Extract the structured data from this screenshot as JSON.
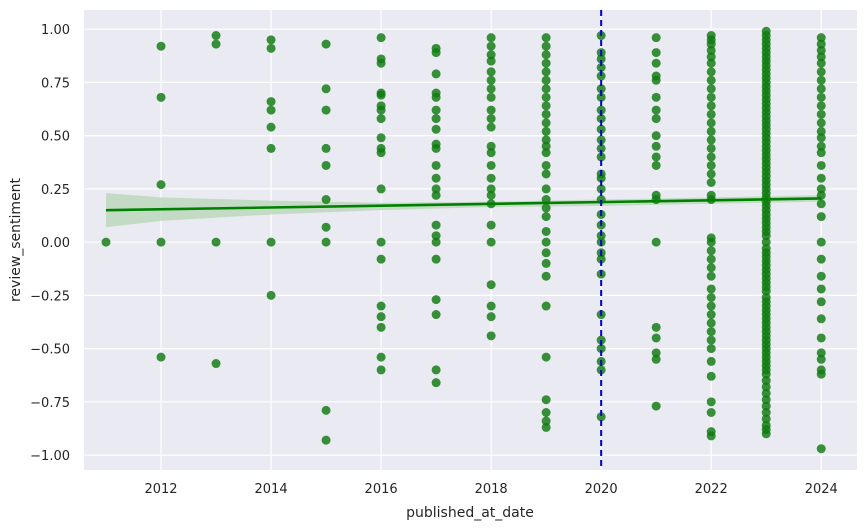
{
  "chart_data": {
    "type": "scatter",
    "title": "",
    "xlabel": "published_at_date",
    "ylabel": "review_sentiment",
    "xlim": [
      2010.6,
      2024.65
    ],
    "ylim": [
      -1.07,
      1.09
    ],
    "x_ticks": [
      2012,
      2014,
      2016,
      2018,
      2020,
      2022,
      2024
    ],
    "y_ticks": [
      -1.0,
      -0.75,
      -0.5,
      -0.25,
      0.0,
      0.25,
      0.5,
      0.75,
      1.0
    ],
    "x_tick_labels": [
      "2012",
      "2014",
      "2016",
      "2018",
      "2020",
      "2022",
      "2024"
    ],
    "y_tick_labels": [
      "−1.00",
      "−0.75",
      "−0.50",
      "−0.25",
      "0.00",
      "0.25",
      "0.50",
      "0.75",
      "1.00"
    ],
    "grid": true,
    "background": "#eaeaf2",
    "point_color": "#0f7a0f",
    "regression_color": "#008000",
    "ci_color": "#b9d6b9",
    "vline_color": "#0000cc",
    "points": [
      {
        "x": 2011,
        "y": [
          0.0
        ]
      },
      {
        "x": 2012,
        "y": [
          0.92,
          0.68,
          0.27,
          0.0,
          -0.54
        ]
      },
      {
        "x": 2013,
        "y": [
          0.97,
          0.93,
          0.0,
          -0.57
        ]
      },
      {
        "x": 2014,
        "y": [
          0.95,
          0.91,
          0.66,
          0.62,
          0.54,
          0.44,
          0.0,
          -0.25
        ]
      },
      {
        "x": 2015,
        "y": [
          0.93,
          0.72,
          0.62,
          0.44,
          0.36,
          0.2,
          0.07,
          0.0,
          -0.79,
          -0.93
        ]
      },
      {
        "x": 2016,
        "y": [
          0.96,
          0.86,
          0.84,
          0.7,
          0.69,
          0.64,
          0.62,
          0.58,
          0.49,
          0.44,
          0.42,
          0.25,
          0.0,
          -0.08,
          -0.3,
          -0.35,
          -0.4,
          -0.54,
          -0.6
        ]
      },
      {
        "x": 2017,
        "y": [
          0.91,
          0.89,
          0.79,
          0.7,
          0.68,
          0.62,
          0.58,
          0.53,
          0.46,
          0.44,
          0.36,
          0.3,
          0.25,
          0.22,
          0.08,
          0.03,
          0.0,
          -0.08,
          -0.27,
          -0.34,
          -0.6,
          -0.66
        ]
      },
      {
        "x": 2018,
        "y": [
          0.96,
          0.92,
          0.88,
          0.85,
          0.8,
          0.76,
          0.72,
          0.68,
          0.62,
          0.58,
          0.54,
          0.45,
          0.42,
          0.36,
          0.3,
          0.25,
          0.22,
          0.18,
          0.08,
          0.0,
          -0.2,
          -0.3,
          -0.35,
          -0.44
        ]
      },
      {
        "x": 2019,
        "y": [
          0.96,
          0.92,
          0.88,
          0.84,
          0.8,
          0.76,
          0.72,
          0.68,
          0.64,
          0.6,
          0.56,
          0.52,
          0.48,
          0.45,
          0.42,
          0.36,
          0.32,
          0.25,
          0.2,
          0.16,
          0.12,
          0.05,
          0.0,
          -0.05,
          -0.1,
          -0.16,
          -0.3,
          -0.54,
          -0.74,
          -0.8,
          -0.84,
          -0.87
        ]
      },
      {
        "x": 2020,
        "y": [
          0.97,
          0.89,
          0.86,
          0.82,
          0.78,
          0.72,
          0.68,
          0.62,
          0.58,
          0.53,
          0.48,
          0.44,
          0.4,
          0.32,
          0.3,
          0.25,
          0.2,
          0.13,
          0.08,
          0.03,
          0.0,
          -0.05,
          -0.08,
          -0.15,
          -0.34,
          -0.46,
          -0.5,
          -0.56,
          -0.6,
          -0.82
        ]
      },
      {
        "x": 2021,
        "y": [
          0.96,
          0.89,
          0.84,
          0.78,
          0.76,
          0.68,
          0.62,
          0.58,
          0.5,
          0.45,
          0.4,
          0.36,
          0.22,
          0.2,
          0.0,
          -0.4,
          -0.45,
          -0.52,
          -0.55,
          -0.77
        ]
      },
      {
        "x": 2022,
        "y": [
          0.97,
          0.95,
          0.93,
          0.9,
          0.87,
          0.84,
          0.8,
          0.76,
          0.72,
          0.68,
          0.64,
          0.6,
          0.56,
          0.52,
          0.48,
          0.44,
          0.4,
          0.36,
          0.32,
          0.28,
          0.22,
          0.2,
          0.02,
          0.0,
          -0.04,
          -0.08,
          -0.12,
          -0.16,
          -0.22,
          -0.26,
          -0.3,
          -0.34,
          -0.38,
          -0.42,
          -0.46,
          -0.5,
          -0.56,
          -0.63,
          -0.75,
          -0.8,
          -0.89,
          -0.91
        ]
      },
      {
        "x": 2023,
        "y": [
          0.99,
          0.97,
          0.95,
          0.93,
          0.91,
          0.89,
          0.87,
          0.85,
          0.83,
          0.81,
          0.79,
          0.77,
          0.75,
          0.73,
          0.71,
          0.69,
          0.67,
          0.65,
          0.63,
          0.61,
          0.59,
          0.57,
          0.55,
          0.53,
          0.51,
          0.49,
          0.47,
          0.45,
          0.43,
          0.41,
          0.39,
          0.37,
          0.35,
          0.33,
          0.31,
          0.29,
          0.27,
          0.25,
          0.23,
          0.21,
          0.19,
          0.17,
          0.15,
          0.13,
          0.11,
          0.09,
          0.07,
          0.05,
          0.03,
          0.0,
          -0.03,
          -0.05,
          -0.07,
          -0.09,
          -0.11,
          -0.13,
          -0.15,
          -0.17,
          -0.19,
          -0.21,
          -0.23,
          -0.26,
          -0.28,
          -0.3,
          -0.32,
          -0.34,
          -0.36,
          -0.38,
          -0.4,
          -0.42,
          -0.44,
          -0.46,
          -0.48,
          -0.5,
          -0.52,
          -0.54,
          -0.56,
          -0.58,
          -0.6,
          -0.62,
          -0.65,
          -0.68,
          -0.71,
          -0.74,
          -0.77,
          -0.8,
          -0.83,
          -0.86,
          -0.88,
          -0.9
        ]
      },
      {
        "x": 2024,
        "y": [
          0.96,
          0.93,
          0.9,
          0.87,
          0.84,
          0.8,
          0.76,
          0.72,
          0.68,
          0.64,
          0.6,
          0.56,
          0.52,
          0.49,
          0.45,
          0.42,
          0.36,
          0.3,
          0.25,
          0.22,
          0.18,
          0.12,
          0.0,
          -0.08,
          -0.16,
          -0.22,
          -0.28,
          -0.36,
          -0.45,
          -0.52,
          -0.55,
          -0.6,
          -0.62,
          -0.97
        ]
      }
    ],
    "regression": {
      "x": [
        2011,
        2024
      ],
      "y": [
        0.15,
        0.205
      ]
    },
    "confidence_band": {
      "x": [
        2011,
        2012,
        2014,
        2016,
        2018,
        2020,
        2022,
        2023,
        2024
      ],
      "lower": [
        0.07,
        0.1,
        0.13,
        0.15,
        0.165,
        0.17,
        0.18,
        0.185,
        0.19
      ],
      "upper": [
        0.23,
        0.21,
        0.195,
        0.185,
        0.19,
        0.2,
        0.21,
        0.215,
        0.22
      ]
    },
    "vline_x": 2020
  }
}
